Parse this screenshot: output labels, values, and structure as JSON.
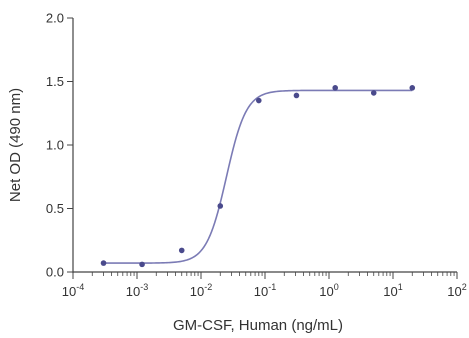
{
  "chart_data": {
    "type": "scatter",
    "xlabel": "GM-CSF, Human (ng/mL)",
    "ylabel": "Net OD (490 nm)",
    "xscale": "log",
    "xlim": [
      0.0001,
      100
    ],
    "ylim": [
      0,
      2.0
    ],
    "x_ticks": [
      {
        "base": "10",
        "exp": "-4",
        "value": 0.0001
      },
      {
        "base": "10",
        "exp": "-3",
        "value": 0.001
      },
      {
        "base": "10",
        "exp": "-2",
        "value": 0.01
      },
      {
        "base": "10",
        "exp": "-1",
        "value": 0.1
      },
      {
        "base": "10",
        "exp": "0",
        "value": 1
      },
      {
        "base": "10",
        "exp": "1",
        "value": 10
      },
      {
        "base": "10",
        "exp": "2",
        "value": 100
      }
    ],
    "y_ticks": [
      {
        "label": "0.0",
        "value": 0
      },
      {
        "label": "0.5",
        "value": 0.5
      },
      {
        "label": "1.0",
        "value": 1.0
      },
      {
        "label": "1.5",
        "value": 1.5
      },
      {
        "label": "2.0",
        "value": 2.0
      }
    ],
    "points": [
      {
        "x": 0.0003,
        "y": 0.07
      },
      {
        "x": 0.0012,
        "y": 0.06
      },
      {
        "x": 0.005,
        "y": 0.17
      },
      {
        "x": 0.02,
        "y": 0.52
      },
      {
        "x": 0.08,
        "y": 1.35
      },
      {
        "x": 0.31,
        "y": 1.39
      },
      {
        "x": 1.25,
        "y": 1.45
      },
      {
        "x": 5.0,
        "y": 1.41
      },
      {
        "x": 20.0,
        "y": 1.45
      }
    ],
    "fit": {
      "bottom": 0.07,
      "top": 1.43,
      "ec50": 0.025,
      "hill": 2.8
    },
    "colors": {
      "axis": "#444444",
      "points": "#4a4a8c",
      "curve": "#7b7bb5"
    },
    "grid": false,
    "legend": "none"
  }
}
